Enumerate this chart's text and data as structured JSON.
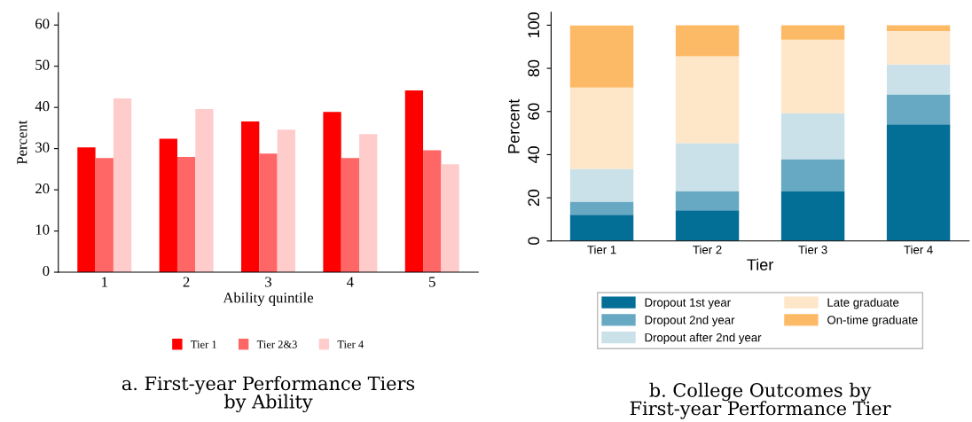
{
  "chart_data": [
    {
      "type": "bar",
      "title": "a. First-year Performance Tiers\nby Ability",
      "xlabel": "Ability quintile",
      "ylabel": "Percent",
      "categories": [
        "1",
        "2",
        "3",
        "4",
        "5"
      ],
      "series": [
        {
          "name": "Tier 1",
          "color": "#ff0000",
          "values": [
            30.3,
            32.4,
            36.6,
            38.9,
            44.1
          ]
        },
        {
          "name": "Tier 2&3",
          "color": "#ff6666",
          "values": [
            27.7,
            28.0,
            28.8,
            27.7,
            29.6
          ]
        },
        {
          "name": "Tier 4",
          "color": "#ffcccc",
          "values": [
            42.2,
            39.6,
            34.6,
            33.5,
            26.2
          ]
        }
      ],
      "ylim": [
        0,
        63
      ],
      "yticks": [
        0,
        10,
        20,
        30,
        40,
        50,
        60
      ],
      "grid": false,
      "legend": "bottom"
    },
    {
      "type": "bar",
      "stacked": true,
      "title": "b. College Outcomes by\nFirst-year Performance Tier",
      "xlabel": "Tier",
      "ylabel": "Percent",
      "categories": [
        "Tier 1",
        "Tier 2",
        "Tier 3",
        "Tier 4"
      ],
      "series": [
        {
          "name": "Dropout 1st year",
          "color": "#036e96",
          "values": [
            12.1,
            14.2,
            22.9,
            54.0
          ]
        },
        {
          "name": "Dropout 2nd year",
          "color": "#67a8c2",
          "values": [
            6.1,
            8.9,
            15.0,
            13.9
          ]
        },
        {
          "name": "Dropout after 2nd year",
          "color": "#cae1ea",
          "values": [
            15.2,
            22.2,
            21.3,
            13.9
          ]
        },
        {
          "name": "Late graduate",
          "color": "#fee6c8",
          "values": [
            37.7,
            40.3,
            34.1,
            15.5
          ]
        },
        {
          "name": "On-time graduate",
          "color": "#fdba66",
          "values": [
            28.8,
            14.4,
            6.7,
            2.7
          ]
        }
      ],
      "ylim": [
        0,
        106
      ],
      "yticks": [
        0,
        20,
        40,
        60,
        80,
        100
      ],
      "grid": false,
      "legend": "bottom"
    }
  ]
}
